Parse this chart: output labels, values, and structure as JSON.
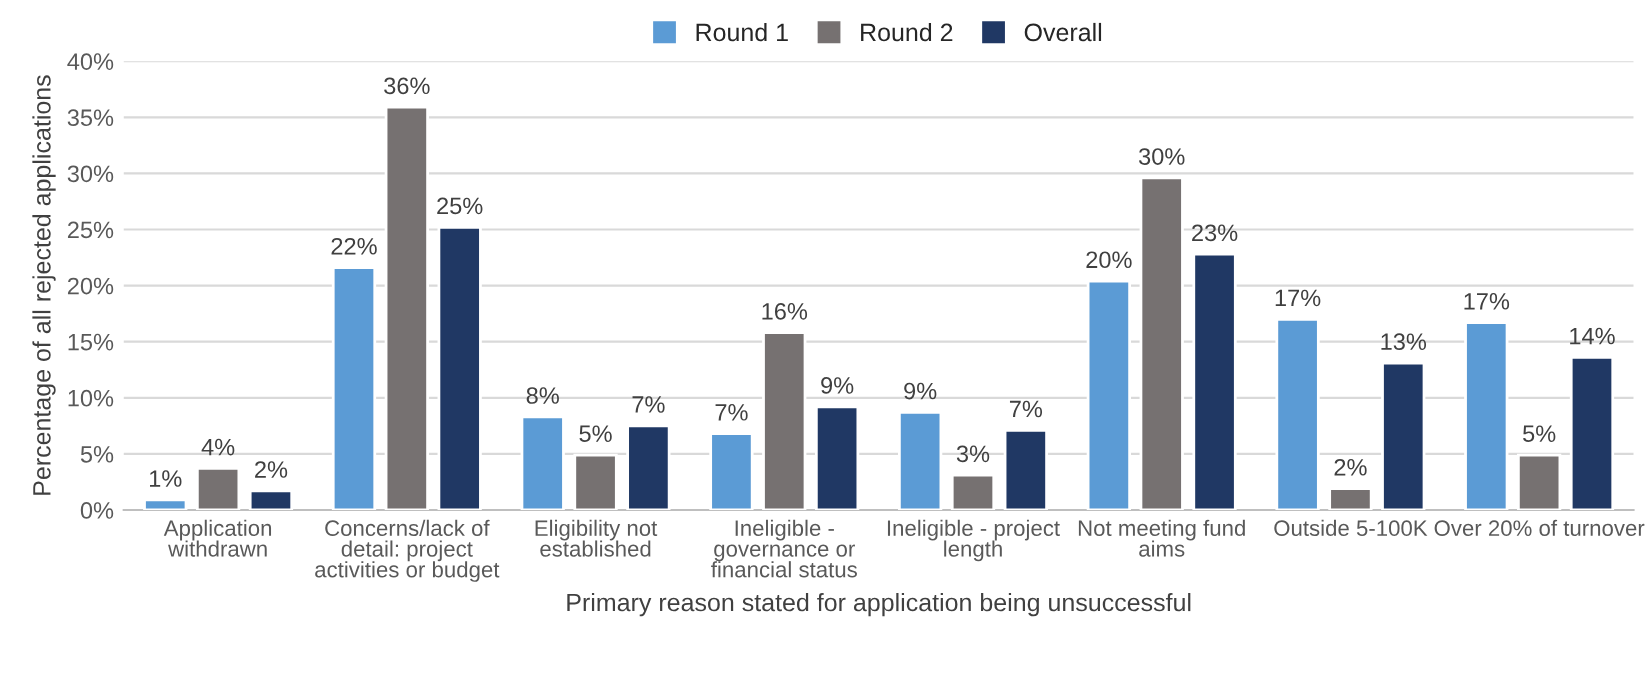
{
  "chart_data": {
    "type": "bar",
    "xlabel": "Primary reason stated for application being unsuccessful",
    "ylabel": "Percentage of all rejected applications",
    "categories": [
      "Application withdrawn",
      "Concerns/lack of detail: project activities or budget",
      "Eligibility not established",
      "Ineligible - governance or financial status",
      "Ineligible - project length",
      "Not meeting fund aims",
      "Outside 5-100K",
      "Over 20% of turnover"
    ],
    "series": [
      {
        "name": "Round 1",
        "color": "#5b9bd5",
        "values": [
          0.9,
          21.6,
          8.3,
          6.8,
          8.7,
          20.4,
          17.0,
          16.7
        ],
        "value_labels": [
          "1%",
          "22%",
          "8%",
          "7%",
          "9%",
          "20%",
          "17%",
          "17%"
        ]
      },
      {
        "name": "Round 2",
        "color": "#767171",
        "values": [
          3.7,
          35.9,
          4.9,
          15.8,
          3.1,
          29.6,
          1.9,
          4.9
        ],
        "value_labels": [
          "4%",
          "36%",
          "5%",
          "16%",
          "3%",
          "30%",
          "2%",
          "5%"
        ]
      },
      {
        "name": "Overall",
        "color": "#203864",
        "values": [
          1.7,
          25.2,
          7.5,
          9.2,
          7.1,
          22.8,
          13.1,
          13.6
        ],
        "value_labels": [
          "2%",
          "25%",
          "7%",
          "9%",
          "7%",
          "23%",
          "13%",
          "14%"
        ]
      }
    ],
    "ylim": [
      0,
      40
    ],
    "yticks": [
      {
        "value": 0,
        "label": "0%"
      },
      {
        "value": 5,
        "label": "5%"
      },
      {
        "value": 10,
        "label": "10%"
      },
      {
        "value": 15,
        "label": "15%"
      },
      {
        "value": 20,
        "label": "20%"
      },
      {
        "value": 25,
        "label": "25%"
      },
      {
        "value": 30,
        "label": "30%"
      },
      {
        "value": 35,
        "label": "35%"
      },
      {
        "value": 40,
        "label": "40%"
      }
    ],
    "grid": "y",
    "legend": "top"
  }
}
